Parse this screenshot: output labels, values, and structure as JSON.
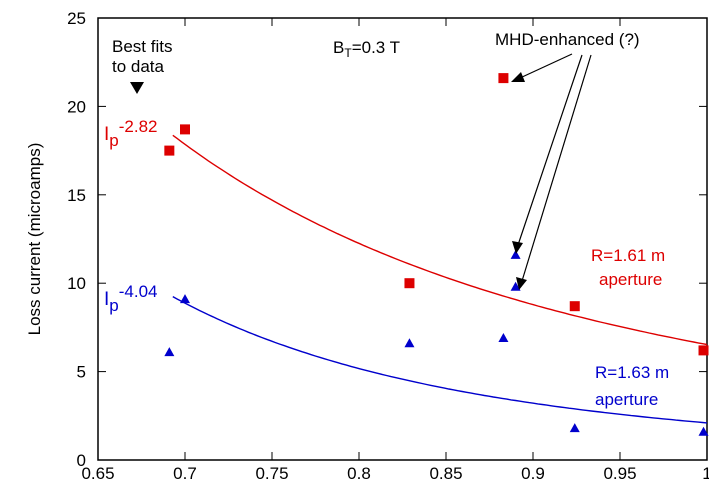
{
  "chart_data": {
    "type": "scatter",
    "ylabel": "Loss current (microamps)",
    "xlabel": "",
    "xlim": [
      0.65,
      1.0
    ],
    "ylim": [
      0,
      25
    ],
    "x_ticks": [
      0.65,
      0.7,
      0.75,
      0.8,
      0.85,
      0.9,
      0.95,
      1.0
    ],
    "x_tick_labels": [
      "0.65",
      "0.7",
      "0.75",
      "0.8",
      "0.85",
      "0.9",
      "0.95",
      "1"
    ],
    "y_ticks": [
      0,
      5,
      10,
      15,
      20,
      25
    ],
    "y_tick_labels": [
      "0",
      "5",
      "10",
      "15",
      "20",
      "25"
    ],
    "grid": false,
    "series": [
      {
        "name": "R=1.61 m aperture",
        "color": "#dd0000",
        "marker": "square",
        "points": [
          {
            "x": 0.691,
            "y": 17.5
          },
          {
            "x": 0.7,
            "y": 18.7
          },
          {
            "x": 0.829,
            "y": 10.0
          },
          {
            "x": 0.883,
            "y": 21.6
          },
          {
            "x": 0.924,
            "y": 8.7
          },
          {
            "x": 0.998,
            "y": 6.2
          }
        ],
        "fit": {
          "label_base": "I",
          "label_sub": "p",
          "label_sup": "-2.82",
          "exponent": -2.82,
          "x_range": [
            0.693,
            1.0
          ],
          "coef": 6.53
        }
      },
      {
        "name": "R=1.63 m aperture",
        "color": "#0000cc",
        "marker": "triangle",
        "points": [
          {
            "x": 0.691,
            "y": 6.1
          },
          {
            "x": 0.7,
            "y": 9.1
          },
          {
            "x": 0.829,
            "y": 6.6
          },
          {
            "x": 0.883,
            "y": 6.9
          },
          {
            "x": 0.89,
            "y": 11.6
          },
          {
            "x": 0.89,
            "y": 9.8
          },
          {
            "x": 0.924,
            "y": 1.8
          },
          {
            "x": 0.998,
            "y": 1.6
          }
        ],
        "fit": {
          "label_base": "I",
          "label_sub": "p",
          "label_sup": "-4.04",
          "exponent": -4.04,
          "x_range": [
            0.693,
            1.0
          ],
          "coef": 2.1
        }
      }
    ],
    "annotations": {
      "best_fits_line1": "Best fits",
      "best_fits_line2": "to data",
      "field_base": "B",
      "field_sub": "T",
      "field_value": "=0.3 T",
      "mhd_label": "MHD-enhanced (?)",
      "red_label_line1": "R=1.61 m",
      "red_label_line2": "aperture",
      "blue_label_line1": "R=1.63 m",
      "blue_label_line2": "aperture"
    }
  }
}
